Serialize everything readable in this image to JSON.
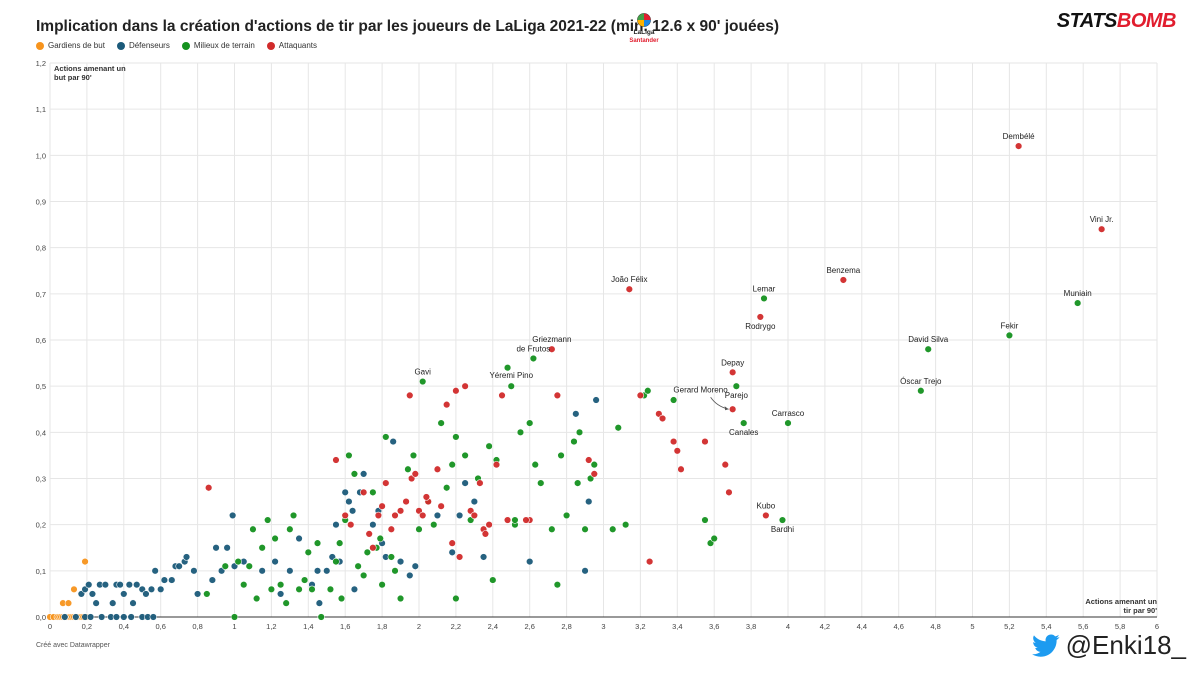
{
  "title": "Implication dans la création d'actions de tir par les joueurs de LaLiga 2021-22 (min. 12.6 x 90' jouées)",
  "laliga_logo": {
    "line1": "LaLiga",
    "line2": "Santander"
  },
  "brand": {
    "part1": "STATS",
    "part2": "BOMB"
  },
  "credit": "Créé avec Datawrapper",
  "twitter_handle": "@Enki18_",
  "colors": {
    "goalkeeper": "#f7941d",
    "defender": "#1b5a7a",
    "midfielder": "#15921f",
    "attacker": "#d12b2b",
    "twitter": "#1d9bf0"
  },
  "chart_data": {
    "type": "scatter",
    "title": "Implication dans la création d'actions de tir par les joueurs de LaLiga 2021-22 (min. 12.6 x 90' jouées)",
    "xlabel": "Actions amenant un tir par 90'",
    "xlabel_lines": [
      "Actions amenant un",
      "tir par 90'"
    ],
    "ylabel": "Actions amenant un but par 90'",
    "ylabel_lines": [
      "Actions amenant un",
      "but par 90'"
    ],
    "xlim": [
      0,
      6
    ],
    "ylim": [
      0,
      1.2
    ],
    "x_ticks": [
      "0",
      "0,2",
      "0,4",
      "0,6",
      "0,8",
      "1",
      "1,2",
      "1,4",
      "1,6",
      "1,8",
      "2",
      "2,2",
      "2,4",
      "2,6",
      "2,8",
      "3",
      "3,2",
      "3,4",
      "3,6",
      "3,8",
      "4",
      "4,2",
      "4,4",
      "4,6",
      "4,8",
      "5",
      "5,2",
      "5,4",
      "5,6",
      "5,8",
      "6"
    ],
    "y_ticks": [
      "0,0",
      "0,1",
      "0,2",
      "0,3",
      "0,4",
      "0,5",
      "0,6",
      "0,7",
      "0,8",
      "0,9",
      "1,0",
      "1,1",
      "1,2"
    ],
    "grid": true,
    "legend_position": "top-left",
    "series": [
      {
        "name": "Gardiens de but",
        "color": "#f7941d",
        "points": [
          [
            0.0,
            0
          ],
          [
            0.02,
            0
          ],
          [
            0.04,
            0
          ],
          [
            0.05,
            0
          ],
          [
            0.06,
            0
          ],
          [
            0.07,
            0
          ],
          [
            0.08,
            0
          ],
          [
            0.09,
            0
          ],
          [
            0.1,
            0
          ],
          [
            0.11,
            0
          ],
          [
            0.12,
            0
          ],
          [
            0.13,
            0
          ],
          [
            0.14,
            0
          ],
          [
            0.15,
            0
          ],
          [
            0.16,
            0
          ],
          [
            0.17,
            0
          ],
          [
            0.18,
            0
          ],
          [
            0.07,
            0.03
          ],
          [
            0.1,
            0.03
          ],
          [
            0.13,
            0.06
          ],
          [
            0.19,
            0.12
          ],
          [
            0.2,
            0
          ]
        ]
      },
      {
        "name": "Défenseurs",
        "color": "#1b5a7a",
        "points": [
          [
            0.08,
            0
          ],
          [
            0.14,
            0
          ],
          [
            0.19,
            0
          ],
          [
            0.22,
            0
          ],
          [
            0.28,
            0
          ],
          [
            0.33,
            0
          ],
          [
            0.36,
            0
          ],
          [
            0.4,
            0
          ],
          [
            0.44,
            0
          ],
          [
            0.5,
            0
          ],
          [
            0.53,
            0
          ],
          [
            0.56,
            0
          ],
          [
            0.17,
            0.05
          ],
          [
            0.19,
            0.06
          ],
          [
            0.21,
            0.07
          ],
          [
            0.23,
            0.05
          ],
          [
            0.25,
            0.03
          ],
          [
            0.27,
            0.07
          ],
          [
            0.3,
            0.07
          ],
          [
            0.34,
            0.03
          ],
          [
            0.36,
            0.07
          ],
          [
            0.38,
            0.07
          ],
          [
            0.4,
            0.05
          ],
          [
            0.43,
            0.07
          ],
          [
            0.45,
            0.03
          ],
          [
            0.47,
            0.07
          ],
          [
            0.5,
            0.06
          ],
          [
            0.52,
            0.05
          ],
          [
            0.55,
            0.06
          ],
          [
            0.57,
            0.1
          ],
          [
            0.6,
            0.06
          ],
          [
            0.62,
            0.08
          ],
          [
            0.66,
            0.08
          ],
          [
            0.68,
            0.11
          ],
          [
            0.7,
            0.11
          ],
          [
            0.73,
            0.12
          ],
          [
            0.74,
            0.13
          ],
          [
            0.78,
            0.1
          ],
          [
            0.8,
            0.05
          ],
          [
            0.88,
            0.08
          ],
          [
            0.9,
            0.15
          ],
          [
            0.93,
            0.1
          ],
          [
            0.96,
            0.15
          ],
          [
            0.99,
            0.22
          ],
          [
            1.0,
            0.11
          ],
          [
            1.05,
            0.12
          ],
          [
            1.15,
            0.1
          ],
          [
            1.25,
            0.05
          ],
          [
            1.3,
            0.1
          ],
          [
            1.35,
            0.17
          ],
          [
            1.45,
            0.1
          ],
          [
            1.5,
            0.1
          ],
          [
            1.53,
            0.13
          ],
          [
            1.55,
            0.2
          ],
          [
            1.57,
            0.12
          ],
          [
            1.6,
            0.27
          ],
          [
            1.62,
            0.25
          ],
          [
            1.64,
            0.23
          ],
          [
            1.68,
            0.27
          ],
          [
            1.7,
            0.31
          ],
          [
            1.75,
            0.2
          ],
          [
            1.78,
            0.23
          ],
          [
            1.8,
            0.16
          ],
          [
            1.82,
            0.13
          ],
          [
            1.86,
            0.38
          ],
          [
            1.9,
            0.12
          ],
          [
            1.95,
            0.09
          ],
          [
            2.1,
            0.22
          ],
          [
            2.18,
            0.14
          ],
          [
            2.22,
            0.22
          ],
          [
            2.3,
            0.25
          ],
          [
            2.35,
            0.13
          ],
          [
            2.6,
            0.12
          ],
          [
            2.85,
            0.44
          ],
          [
            2.92,
            0.25
          ],
          [
            2.9,
            0.1
          ],
          [
            2.96,
            0.47
          ],
          [
            1.42,
            0.07
          ],
          [
            1.46,
            0.03
          ],
          [
            1.65,
            0.06
          ],
          [
            1.98,
            0.11
          ],
          [
            2.25,
            0.29
          ],
          [
            1.22,
            0.12
          ]
        ]
      },
      {
        "name": "Milieux de terrain",
        "color": "#15921f",
        "points": [
          [
            0.85,
            0.05
          ],
          [
            0.95,
            0.11
          ],
          [
            1.0,
            0
          ],
          [
            1.02,
            0.12
          ],
          [
            1.05,
            0.07
          ],
          [
            1.08,
            0.11
          ],
          [
            1.1,
            0.19
          ],
          [
            1.12,
            0.04
          ],
          [
            1.15,
            0.15
          ],
          [
            1.18,
            0.21
          ],
          [
            1.2,
            0.06
          ],
          [
            1.22,
            0.17
          ],
          [
            1.25,
            0.07
          ],
          [
            1.28,
            0.03
          ],
          [
            1.3,
            0.19
          ],
          [
            1.32,
            0.22
          ],
          [
            1.35,
            0.06
          ],
          [
            1.38,
            0.08
          ],
          [
            1.4,
            0.14
          ],
          [
            1.42,
            0.06
          ],
          [
            1.45,
            0.16
          ],
          [
            1.47,
            0
          ],
          [
            1.52,
            0.06
          ],
          [
            1.55,
            0.12
          ],
          [
            1.57,
            0.16
          ],
          [
            1.6,
            0.21
          ],
          [
            1.62,
            0.35
          ],
          [
            1.65,
            0.31
          ],
          [
            1.67,
            0.11
          ],
          [
            1.7,
            0.09
          ],
          [
            1.72,
            0.14
          ],
          [
            1.75,
            0.27
          ],
          [
            1.77,
            0.15
          ],
          [
            1.79,
            0.17
          ],
          [
            1.82,
            0.39
          ],
          [
            1.85,
            0.13
          ],
          [
            1.87,
            0.1
          ],
          [
            1.9,
            0.04
          ],
          [
            1.94,
            0.32
          ],
          [
            1.97,
            0.35
          ],
          [
            2.0,
            0.19
          ],
          [
            2.02,
            0.51
          ],
          [
            2.05,
            0.25
          ],
          [
            2.08,
            0.2
          ],
          [
            2.12,
            0.42
          ],
          [
            2.15,
            0.28
          ],
          [
            2.18,
            0.33
          ],
          [
            2.2,
            0.39
          ],
          [
            2.25,
            0.35
          ],
          [
            2.28,
            0.21
          ],
          [
            2.32,
            0.3
          ],
          [
            2.38,
            0.37
          ],
          [
            2.4,
            0.08
          ],
          [
            2.42,
            0.34
          ],
          [
            2.48,
            0.54
          ],
          [
            2.5,
            0.5
          ],
          [
            2.55,
            0.4
          ],
          [
            2.6,
            0.42
          ],
          [
            2.63,
            0.33
          ],
          [
            2.66,
            0.29
          ],
          [
            2.72,
            0.19
          ],
          [
            2.75,
            0.07
          ],
          [
            2.77,
            0.35
          ],
          [
            2.8,
            0.22
          ],
          [
            2.84,
            0.38
          ],
          [
            2.87,
            0.4
          ],
          [
            2.9,
            0.19
          ],
          [
            2.93,
            0.3
          ],
          [
            2.95,
            0.33
          ],
          [
            3.05,
            0.19
          ],
          [
            3.08,
            0.41
          ],
          [
            3.12,
            0.2
          ],
          [
            3.22,
            0.48
          ],
          [
            3.24,
            0.49
          ],
          [
            3.38,
            0.47
          ],
          [
            3.55,
            0.21
          ],
          [
            3.58,
            0.16
          ],
          [
            3.6,
            0.17
          ],
          [
            3.72,
            0.5
          ],
          [
            3.76,
            0.42
          ],
          [
            3.87,
            0.69
          ],
          [
            3.97,
            0.21
          ],
          [
            4.0,
            0.42
          ],
          [
            4.72,
            0.49
          ],
          [
            4.76,
            0.58
          ],
          [
            5.2,
            0.61
          ],
          [
            5.57,
            0.68
          ],
          [
            2.62,
            0.56
          ],
          [
            2.52,
            0.2
          ],
          [
            2.86,
            0.29
          ],
          [
            2.2,
            0.04
          ],
          [
            1.8,
            0.07
          ],
          [
            1.58,
            0.04
          ],
          [
            2.52,
            0.21
          ]
        ]
      },
      {
        "name": "Attaquants",
        "color": "#d12b2b",
        "points": [
          [
            0.86,
            0.28
          ],
          [
            1.55,
            0.34
          ],
          [
            1.6,
            0.22
          ],
          [
            1.63,
            0.2
          ],
          [
            1.7,
            0.27
          ],
          [
            1.73,
            0.18
          ],
          [
            1.75,
            0.15
          ],
          [
            1.78,
            0.22
          ],
          [
            1.8,
            0.24
          ],
          [
            1.82,
            0.29
          ],
          [
            1.85,
            0.19
          ],
          [
            1.87,
            0.22
          ],
          [
            1.9,
            0.23
          ],
          [
            1.93,
            0.25
          ],
          [
            1.95,
            0.48
          ],
          [
            1.96,
            0.3
          ],
          [
            1.98,
            0.31
          ],
          [
            2.0,
            0.23
          ],
          [
            2.02,
            0.22
          ],
          [
            2.05,
            0.25
          ],
          [
            2.1,
            0.32
          ],
          [
            2.12,
            0.24
          ],
          [
            2.15,
            0.46
          ],
          [
            2.18,
            0.16
          ],
          [
            2.2,
            0.49
          ],
          [
            2.22,
            0.13
          ],
          [
            2.25,
            0.5
          ],
          [
            2.28,
            0.23
          ],
          [
            2.3,
            0.22
          ],
          [
            2.33,
            0.29
          ],
          [
            2.35,
            0.19
          ],
          [
            2.38,
            0.2
          ],
          [
            2.42,
            0.33
          ],
          [
            2.45,
            0.48
          ],
          [
            2.48,
            0.21
          ],
          [
            2.6,
            0.21
          ],
          [
            2.72,
            0.58
          ],
          [
            2.75,
            0.48
          ],
          [
            2.95,
            0.31
          ],
          [
            3.14,
            0.71
          ],
          [
            3.2,
            0.48
          ],
          [
            3.25,
            0.12
          ],
          [
            3.3,
            0.44
          ],
          [
            3.32,
            0.43
          ],
          [
            3.38,
            0.38
          ],
          [
            3.4,
            0.36
          ],
          [
            3.42,
            0.32
          ],
          [
            3.55,
            0.38
          ],
          [
            3.66,
            0.33
          ],
          [
            3.68,
            0.27
          ],
          [
            3.7,
            0.45
          ],
          [
            3.7,
            0.53
          ],
          [
            3.85,
            0.65
          ],
          [
            3.88,
            0.22
          ],
          [
            4.3,
            0.73
          ],
          [
            5.25,
            1.02
          ],
          [
            5.7,
            0.84
          ],
          [
            2.58,
            0.21
          ],
          [
            2.36,
            0.18
          ],
          [
            2.92,
            0.34
          ],
          [
            2.04,
            0.26
          ]
        ]
      }
    ],
    "labels": [
      {
        "text": "Dembélé",
        "x": 5.25,
        "y": 1.02,
        "pos": "above"
      },
      {
        "text": "Vini Jr.",
        "x": 5.7,
        "y": 0.84,
        "pos": "above"
      },
      {
        "text": "Benzema",
        "x": 4.3,
        "y": 0.73,
        "pos": "above"
      },
      {
        "text": "Muniain",
        "x": 5.57,
        "y": 0.68,
        "pos": "above"
      },
      {
        "text": "Fekir",
        "x": 5.2,
        "y": 0.61,
        "pos": "above"
      },
      {
        "text": "David Silva",
        "x": 4.76,
        "y": 0.58,
        "pos": "above"
      },
      {
        "text": "Óscar Trejo",
        "x": 4.72,
        "y": 0.49,
        "pos": "above"
      },
      {
        "text": "João Félix",
        "x": 3.14,
        "y": 0.71,
        "pos": "above"
      },
      {
        "text": "Lemar",
        "x": 3.87,
        "y": 0.69,
        "pos": "above"
      },
      {
        "text": "Rodrygo",
        "x": 3.85,
        "y": 0.65,
        "pos": "below"
      },
      {
        "text": "Griezmann",
        "x": 2.72,
        "y": 0.58,
        "pos": "above"
      },
      {
        "text": "de Frutos",
        "x": 2.62,
        "y": 0.56,
        "pos": "above"
      },
      {
        "text": "Gavi",
        "x": 2.02,
        "y": 0.51,
        "pos": "above"
      },
      {
        "text": "Yéremi Pino",
        "x": 2.5,
        "y": 0.5,
        "pos": "aboveL"
      },
      {
        "text": "Depay",
        "x": 3.7,
        "y": 0.53,
        "pos": "above"
      },
      {
        "text": "Parejo",
        "x": 3.72,
        "y": 0.5,
        "pos": "below"
      },
      {
        "text": "Gerard Moreno",
        "x": 3.7,
        "y": 0.45,
        "pos": "arrow"
      },
      {
        "text": "Carrasco",
        "x": 4.0,
        "y": 0.42,
        "pos": "above"
      },
      {
        "text": "Canales",
        "x": 3.76,
        "y": 0.42,
        "pos": "below"
      },
      {
        "text": "Kubo",
        "x": 3.88,
        "y": 0.22,
        "pos": "above"
      },
      {
        "text": "Bardhi",
        "x": 3.97,
        "y": 0.21,
        "pos": "below"
      }
    ]
  }
}
